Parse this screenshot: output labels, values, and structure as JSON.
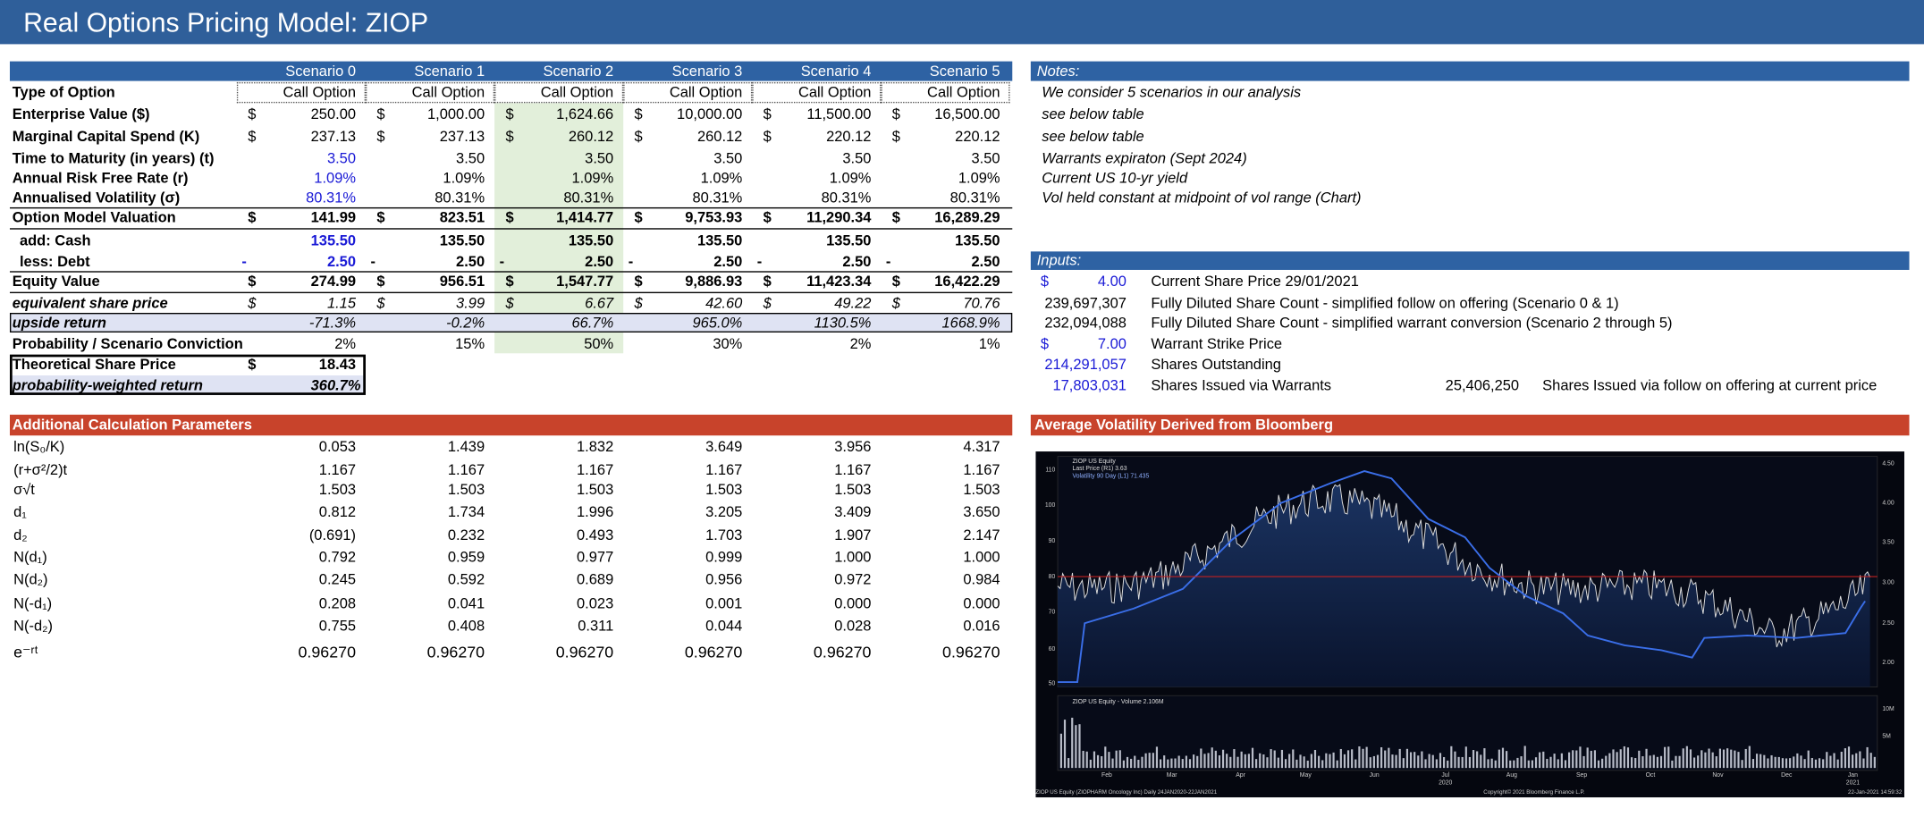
{
  "title": "Real Options Pricing Model: ZIOP",
  "scenario_table": {
    "headers": [
      "Scenario 0",
      "Scenario 1",
      "Scenario 2",
      "Scenario 3",
      "Scenario 4",
      "Scenario 5"
    ],
    "rows": [
      {
        "label": "Type of Option",
        "values": [
          "Call Option",
          "Call Option",
          "Call Option",
          "Call Option",
          "Call Option",
          "Call Option"
        ]
      },
      {
        "label": "Enterprise Value ($)",
        "prefix": "$",
        "values": [
          "250.00",
          "1,000.00",
          "1,624.66",
          "10,000.00",
          "11,500.00",
          "16,500.00"
        ]
      },
      {
        "label": "Marginal Capital Spend (K)",
        "prefix": "$",
        "values": [
          "237.13",
          "237.13",
          "260.12",
          "260.12",
          "220.12",
          "220.12"
        ]
      },
      {
        "label": "Time to Maturity (in years) (t)",
        "values": [
          "3.50",
          "3.50",
          "3.50",
          "3.50",
          "3.50",
          "3.50"
        ]
      },
      {
        "label": "Annual Risk Free Rate (r)",
        "values": [
          "1.09%",
          "1.09%",
          "1.09%",
          "1.09%",
          "1.09%",
          "1.09%"
        ]
      },
      {
        "label": "Annualised Volatility (σ)",
        "values": [
          "80.31%",
          "80.31%",
          "80.31%",
          "80.31%",
          "80.31%",
          "80.31%"
        ]
      },
      {
        "label": "Option Model Valuation",
        "prefix": "$",
        "values": [
          "141.99",
          "823.51",
          "1,414.77",
          "9,753.93",
          "11,290.34",
          "16,289.29"
        ]
      },
      {
        "label": "add: Cash",
        "values": [
          "135.50",
          "135.50",
          "135.50",
          "135.50",
          "135.50",
          "135.50"
        ]
      },
      {
        "label": "less: Debt",
        "prefix": "-",
        "values": [
          "2.50",
          "2.50",
          "2.50",
          "2.50",
          "2.50",
          "2.50"
        ]
      },
      {
        "label": "Equity Value",
        "prefix": "$",
        "values": [
          "274.99",
          "956.51",
          "1,547.77",
          "9,886.93",
          "11,423.34",
          "16,422.29"
        ]
      },
      {
        "label": "equivalent share price",
        "prefix": "$",
        "values": [
          "1.15",
          "3.99",
          "6.67",
          "42.60",
          "49.22",
          "70.76"
        ]
      },
      {
        "label": "upside return",
        "values": [
          "-71.3%",
          "-0.2%",
          "66.7%",
          "965.0%",
          "1130.5%",
          "1668.9%"
        ]
      },
      {
        "label": "Probability / Scenario Conviction",
        "values": [
          "2%",
          "15%",
          "50%",
          "30%",
          "2%",
          "1%"
        ]
      }
    ]
  },
  "summary": {
    "theoretical_share_price": {
      "label": "Theoretical Share Price",
      "prefix": "$",
      "value": "18.43"
    },
    "probability_weighted_return": {
      "label": "probability-weighted return",
      "value": "360.7%"
    }
  },
  "parameters": {
    "title": "Additional Calculation Parameters",
    "rows": [
      {
        "label": "ln(S₀/K)",
        "values": [
          "0.053",
          "1.439",
          "1.832",
          "3.649",
          "3.956",
          "4.317"
        ]
      },
      {
        "label": "(r+σ²/2)t",
        "values": [
          "1.167",
          "1.167",
          "1.167",
          "1.167",
          "1.167",
          "1.167"
        ]
      },
      {
        "label": "σ√t",
        "values": [
          "1.503",
          "1.503",
          "1.503",
          "1.503",
          "1.503",
          "1.503"
        ]
      },
      {
        "label": "d₁",
        "values": [
          "0.812",
          "1.734",
          "1.996",
          "3.205",
          "3.409",
          "3.650"
        ]
      },
      {
        "label": "d₂",
        "values": [
          "(0.691)",
          "0.232",
          "0.493",
          "1.703",
          "1.907",
          "2.147"
        ]
      },
      {
        "label": "N(d₁)",
        "values": [
          "0.792",
          "0.959",
          "0.977",
          "0.999",
          "1.000",
          "1.000"
        ]
      },
      {
        "label": "N(d₂)",
        "values": [
          "0.245",
          "0.592",
          "0.689",
          "0.956",
          "0.972",
          "0.984"
        ]
      },
      {
        "label": "N(-d₁)",
        "values": [
          "0.208",
          "0.041",
          "0.023",
          "0.001",
          "0.000",
          "0.000"
        ]
      },
      {
        "label": "N(-d₂)",
        "values": [
          "0.755",
          "0.408",
          "0.311",
          "0.044",
          "0.028",
          "0.016"
        ]
      },
      {
        "label": "e⁻ʳᵗ",
        "values": [
          "0.96270",
          "0.96270",
          "0.96270",
          "0.96270",
          "0.96270",
          "0.96270"
        ]
      }
    ]
  },
  "notes": {
    "title": "Notes:",
    "items": [
      "We consider 5 scenarios in our analysis",
      "see below table",
      "see below table",
      "Warrants expiraton (Sept 2024)",
      "Current US 10-yr yield",
      "Vol held constant at midpoint of vol range (Chart)"
    ]
  },
  "inputs": {
    "title": "Inputs:",
    "rows": [
      {
        "prefix": "$",
        "value": "4.00",
        "description": "Current Share Price 29/01/2021"
      },
      {
        "value": "239,697,307",
        "description": "Fully Diluted Share Count - simplified follow on offering (Scenario 0 & 1)"
      },
      {
        "value": "232,094,088",
        "description": "Fully Diluted Share Count - simplified warrant conversion (Scenario 2 through 5)"
      },
      {
        "prefix": "$",
        "value": "7.00",
        "description": "Warrant Strike Price"
      },
      {
        "value": "214,291,057",
        "description": "Shares Outstanding"
      },
      {
        "value": "17,803,031",
        "description": "Shares Issued via Warrants",
        "extra_value": "25,406,250",
        "extra_description": "Shares Issued via follow on offering at current price"
      }
    ]
  },
  "bloomberg_chart": {
    "title": "Average Volatility Derived from Bloomberg",
    "legend": [
      "ZIOP US Equity",
      "Last Price (R1)  3.63",
      "Volatility 90 Day (L1)  71.435"
    ],
    "left_ticks": [
      "110",
      "100",
      "90",
      "80",
      "70",
      "60",
      "50"
    ],
    "right_ticks": [
      "4.50",
      "4.00",
      "3.50",
      "3.00",
      "2.50",
      "2.00"
    ],
    "months": [
      "Feb",
      "Mar",
      "Apr",
      "May",
      "Jun",
      "Jul",
      "Aug",
      "Sep",
      "Oct",
      "Nov",
      "Dec",
      "Jan"
    ],
    "years": [
      "2020",
      "2021"
    ],
    "volume_legend": "ZIOP US Equity - Volume  2.106M",
    "volume_ticks": [
      "10M",
      "5M"
    ],
    "footer_left": "ZIOP US Equity (ZIOPHARM Oncology Inc)  Daily 24JAN2020-22JAN2021",
    "footer_center": "Copyright© 2021 Bloomberg Finance L.P.",
    "footer_right": "22-Jan-2021 14:59:32"
  }
}
